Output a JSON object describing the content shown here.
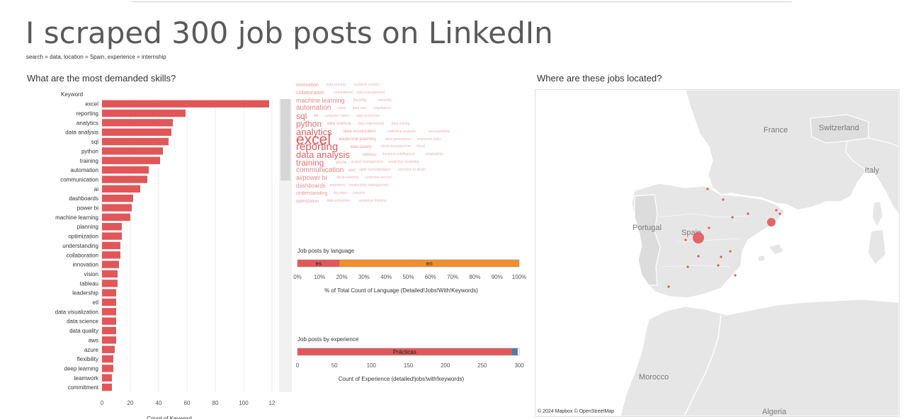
{
  "page": {
    "title": "I scraped 300 job posts on LinkedIn",
    "subtitle": "search = data, location = Spain, experience = internship"
  },
  "skills_section": {
    "title": "What are the most demanded skills?"
  },
  "map_section": {
    "title": "Where are these jobs located?",
    "attribution": "© 2024 Mapbox  © OpenStreetMap",
    "country_labels": [
      "France",
      "Switzerland",
      "Italy",
      "Portugal",
      "Spain",
      "Morocco",
      "Algeria"
    ],
    "colors": {
      "land": "#e6e6e6",
      "sea": "#ffffff",
      "border": "#ffffff",
      "marker": "#e15759"
    },
    "locations": [
      {
        "name": "Madrid",
        "size": "large"
      },
      {
        "name": "Barcelona",
        "size": "medium"
      },
      {
        "name": "other",
        "size": "small"
      }
    ]
  },
  "chart_data": [
    {
      "type": "bar",
      "orientation": "horizontal",
      "ylabel": "Keyword",
      "xlabel": "Count of Keyword",
      "xlim": [
        0,
        125
      ],
      "xticks": [
        "0",
        "20",
        "40",
        "60",
        "80",
        "100",
        "12"
      ],
      "color": "#e15759",
      "categories": [
        "excel",
        "reporting",
        "analytics",
        "data analysis",
        "sql",
        "python",
        "training",
        "automation",
        "communication",
        "ai",
        "dashboards",
        "power bi",
        "machine learning",
        "planning",
        "optimization",
        "understanding",
        "collaboration",
        "innovation",
        "vision",
        "tableau",
        "leadership",
        "etl",
        "data visualization",
        "data science",
        "data quality",
        "aws",
        "azure",
        "flexibility",
        "deep learning",
        "teamwork",
        "commitment"
      ],
      "values": [
        118,
        59,
        50,
        49,
        47,
        43,
        41,
        33,
        32,
        27,
        22,
        21,
        20,
        14,
        14,
        13,
        13,
        12,
        11,
        11,
        10,
        10,
        10,
        10,
        10,
        10,
        9,
        8,
        8,
        7,
        7
      ]
    },
    {
      "type": "bar",
      "orientation": "horizontal",
      "stacked": true,
      "title": "Job posts by language",
      "xlabel": "% of Total Count of Language (Detailed!Jobs!With!Keywords)",
      "xticks": [
        "0%",
        "10%",
        "20%",
        "30%",
        "40%",
        "50%",
        "60%",
        "70%",
        "80%",
        "90%",
        "100%"
      ],
      "xlim": [
        0,
        100
      ],
      "series": [
        {
          "name": "es",
          "values": [
            19
          ],
          "color": "#e15759"
        },
        {
          "name": "en",
          "values": [
            81
          ],
          "color": "#f28e2b"
        }
      ]
    },
    {
      "type": "bar",
      "orientation": "horizontal",
      "stacked": true,
      "title": "Job posts by experience",
      "xlabel": "Count of Experience (detailed!jobs!with!keywords)",
      "xticks": [
        "0",
        "50",
        "100",
        "150",
        "200",
        "250",
        "300"
      ],
      "xlim": [
        0,
        300
      ],
      "series": [
        {
          "name": "Prácticas",
          "values": [
            290
          ],
          "color": "#e15759"
        },
        {
          "name": "",
          "values": [
            8
          ],
          "color": "#4e79a7"
        }
      ]
    },
    {
      "type": "wordcloud",
      "color": "#e15759",
      "words": [
        {
          "text": "excel",
          "w": 10
        },
        {
          "text": "reporting",
          "w": 7
        },
        {
          "text": "analytics",
          "w": 6
        },
        {
          "text": "data analysis",
          "w": 6
        },
        {
          "text": "python",
          "w": 5
        },
        {
          "text": "training",
          "w": 5
        },
        {
          "text": "communication",
          "w": 4
        },
        {
          "text": "automation",
          "w": 4
        },
        {
          "text": "sql",
          "w": 5
        },
        {
          "text": "ai/power bi",
          "w": 3.5
        },
        {
          "text": "machine learning",
          "w": 3.5
        },
        {
          "text": "dashboards",
          "w": 3.3
        },
        {
          "text": "collaboration",
          "w": 2.8
        },
        {
          "text": "understanding",
          "w": 2.8
        },
        {
          "text": "innovation",
          "w": 2.6
        },
        {
          "text": "optimization",
          "w": 2.3
        },
        {
          "text": "leadership planning",
          "w": 2.3
        },
        {
          "text": "data quality",
          "w": 2.2
        },
        {
          "text": "data visualization",
          "w": 2.1
        },
        {
          "text": "tableau",
          "w": 2
        },
        {
          "text": "data science",
          "w": 2
        },
        {
          "text": "azure",
          "w": 2
        },
        {
          "text": "etl",
          "w": 2
        },
        {
          "text": "aws",
          "w": 2
        },
        {
          "text": "vision",
          "w": 1.7
        },
        {
          "text": "deep learning",
          "w": 1.5
        },
        {
          "text": "flexibility",
          "w": 1.5
        },
        {
          "text": "teamwork",
          "w": 1.5
        },
        {
          "text": "commitment",
          "w": 1.5
        },
        {
          "text": "big data",
          "w": 1.5
        },
        {
          "text": "data security",
          "w": 1.3
        },
        {
          "text": "data extraction",
          "w": 1.3
        },
        {
          "text": "data governance",
          "w": 1.3
        },
        {
          "text": "client management",
          "w": 1.3
        },
        {
          "text": "statistical analysis",
          "w": 1.3
        },
        {
          "text": "business intelligence",
          "w": 1.3
        },
        {
          "text": "data engineering",
          "w": 1.3
        },
        {
          "text": "project management",
          "w": 1.3
        },
        {
          "text": "computer vision",
          "w": 1.3
        },
        {
          "text": "agile methodologies",
          "w": 1.3
        },
        {
          "text": "data lake",
          "w": 1.3
        },
        {
          "text": "customer service",
          "w": 1.2
        },
        {
          "text": "reliability",
          "w": 1.2
        },
        {
          "text": "relationship management",
          "w": 1.2
        },
        {
          "text": "data management",
          "w": 1.2
        },
        {
          "text": "integrity",
          "w": 1.1
        },
        {
          "text": "problem solving",
          "w": 1.1
        },
        {
          "text": "analytical thinking",
          "w": 1.1
        },
        {
          "text": "teamwork skills",
          "w": 1.1
        },
        {
          "text": "cloud",
          "w": 1.1
        },
        {
          "text": "accountability",
          "w": 1.1
        },
        {
          "text": "adaptability",
          "w": 1.1
        },
        {
          "text": "data mining",
          "w": 1.1
        },
        {
          "text": "predictive modeling",
          "w": 1.1
        },
        {
          "text": "data protection",
          "w": 1.1
        },
        {
          "text": "attention to detail",
          "w": 1.1
        },
        {
          "text": "negotiation",
          "w": 1.1
        }
      ]
    }
  ]
}
